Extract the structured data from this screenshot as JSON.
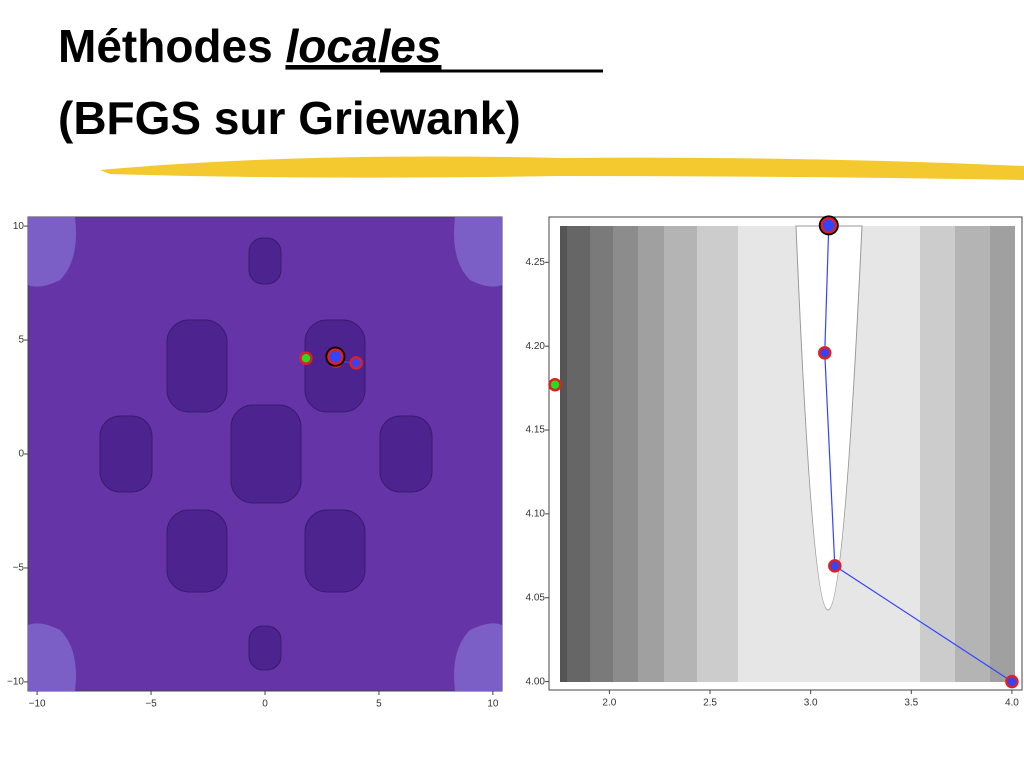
{
  "title": {
    "line1": "Méthodes ",
    "emphasis": "locales",
    "line2": "(BFGS sur Griewank)"
  },
  "chart_data": [
    {
      "type": "contour",
      "xlim": [
        -10.4,
        10.4
      ],
      "ylim": [
        -10.4,
        10.4
      ],
      "xticks": [
        {
          "value": -10,
          "label": "−10"
        },
        {
          "value": -5,
          "label": "−5"
        },
        0,
        5,
        10
      ],
      "yticks": [
        {
          "value": -10,
          "label": "−10"
        },
        {
          "value": -5,
          "label": "−5"
        },
        0,
        5,
        10
      ],
      "start": {
        "x": 1.8,
        "y": 4.2,
        "color": "#22dd22"
      },
      "path": {
        "x": [
          4.0,
          3.12,
          3.07,
          3.09
        ],
        "y": [
          4.0,
          4.069,
          4.196,
          4.272
        ],
        "color": "#3344ff"
      }
    },
    {
      "type": "contour",
      "xlim": [
        1.7,
        4.05
      ],
      "ylim": [
        3.995,
        4.277
      ],
      "xticks": [
        {
          "value": 2.0,
          "label": "2.0"
        },
        {
          "value": 2.5,
          "label": "2.5"
        },
        {
          "value": 3.0,
          "label": "3.0"
        },
        {
          "value": 3.5,
          "label": "3.5"
        },
        {
          "value": 4.0,
          "label": "4.0"
        }
      ],
      "yticks": [
        {
          "value": 4.0,
          "label": "4.00"
        },
        4.05,
        {
          "value": 4.1,
          "label": "4.10"
        },
        4.15,
        {
          "value": 4.2,
          "label": "4.20"
        },
        4.25
      ],
      "start": {
        "x": 1.73,
        "y": 4.177,
        "color": "#22dd22"
      },
      "path": {
        "x": [
          4.0,
          3.12,
          3.07,
          3.09
        ],
        "y": [
          4.0,
          4.069,
          4.196,
          4.272
        ],
        "color": "#3344ff"
      }
    }
  ]
}
